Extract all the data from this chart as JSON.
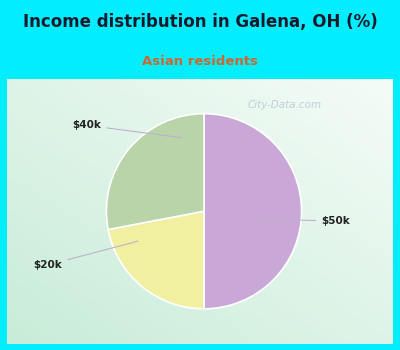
{
  "title": "Income distribution in Galena, OH (%)",
  "subtitle": "Asian residents",
  "title_color": "#1a1a2e",
  "subtitle_color": "#cc6633",
  "slices": [
    {
      "label": "$50k",
      "value": 50,
      "color": "#c9a8d8"
    },
    {
      "label": "$40k",
      "value": 22,
      "color": "#f0f0a0"
    },
    {
      "label": "$20k",
      "value": 28,
      "color": "#b8d4a8"
    }
  ],
  "startangle": 90,
  "border_color": "#00eeff",
  "chart_bg_left": "#c8ecd8",
  "chart_bg_right": "#f0f8f4",
  "watermark": "City-Data.com",
  "watermark_color": "#b8c8d0",
  "label_color": "#222222",
  "line_color": "#c0b0d0",
  "border_width": 7
}
